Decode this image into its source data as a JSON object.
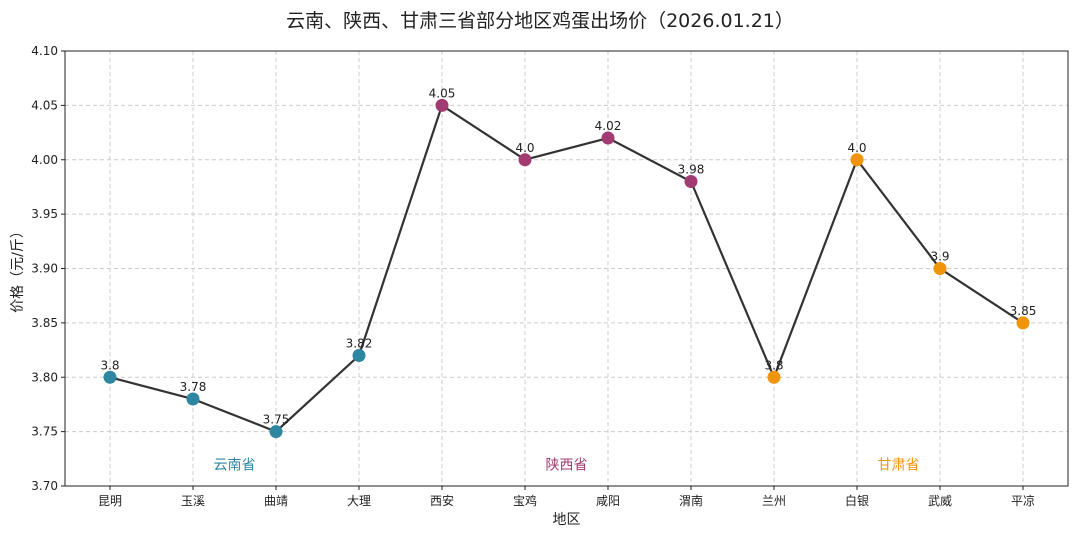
{
  "chart_data": {
    "type": "line",
    "title": "云南、陕西、甘肃三省部分地区鸡蛋出场价（2026.01.21）",
    "xlabel": "地区",
    "ylabel": "价格（元/斤）",
    "categories": [
      "昆明",
      "玉溪",
      "曲靖",
      "大理",
      "西安",
      "宝鸡",
      "咸阳",
      "渭南",
      "兰州",
      "白银",
      "武威",
      "平凉"
    ],
    "values": [
      3.8,
      3.78,
      3.75,
      3.82,
      4.05,
      4.0,
      4.02,
      3.98,
      3.8,
      4.0,
      3.9,
      3.85
    ],
    "data_labels": [
      "3.8",
      "3.78",
      "3.75",
      "3.82",
      "4.05",
      "4.0",
      "4.02",
      "3.98",
      "3.8",
      "4.0",
      "3.9",
      "3.85"
    ],
    "point_groups": [
      0,
      0,
      0,
      0,
      1,
      1,
      1,
      1,
      2,
      2,
      2,
      2
    ],
    "groups": [
      {
        "name": "云南省",
        "color": "#2e86a0",
        "center_index": 1.5
      },
      {
        "name": "陕西省",
        "color": "#a23b72",
        "center_index": 5.5
      },
      {
        "name": "甘肃省",
        "color": "#f0940a",
        "center_index": 9.5
      }
    ],
    "ylim": [
      3.7,
      4.1
    ],
    "yticks": [
      "3.70",
      "3.75",
      "3.80",
      "3.85",
      "3.90",
      "3.95",
      "4.00",
      "4.05",
      "4.10"
    ],
    "grid": true,
    "line_color": "#333333"
  }
}
